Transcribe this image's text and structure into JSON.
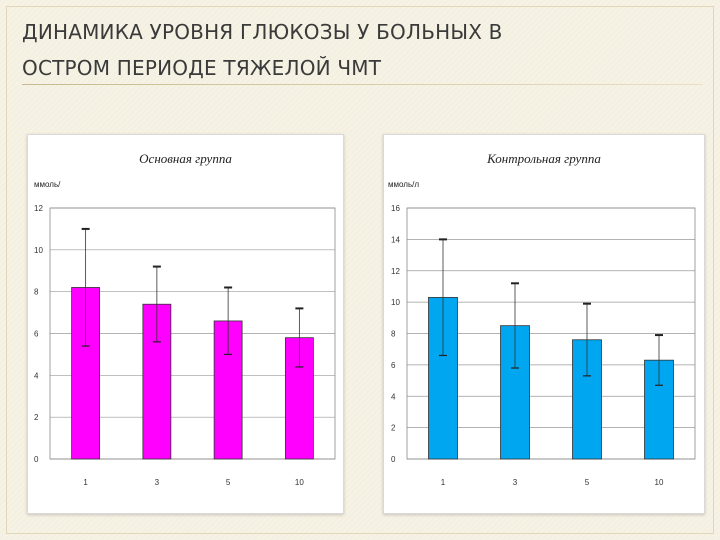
{
  "slide": {
    "title_line1": "ДИНАМИКА УРОВНЯ ГЛЮКОЗЫ У БОЛЬНЫХ В",
    "title_line2": "ОСТРОМ ПЕРИОДЕ  ТЯЖЕЛОЙ ЧМТ"
  },
  "colors": {
    "main_group": "#ff00ff",
    "control_group": "#00a6f0"
  },
  "chart_data": [
    {
      "type": "bar",
      "title": "Основная группа",
      "ylabel": "ммоль/",
      "categories": [
        "1",
        "3",
        "5",
        "10"
      ],
      "series": [
        {
          "values": [
            8.2,
            7.4,
            6.6,
            5.8
          ],
          "error_upper": [
            11.0,
            9.2,
            8.2,
            7.2
          ],
          "error_lower": [
            5.4,
            5.6,
            5.0,
            4.4
          ]
        }
      ],
      "ylim": [
        0,
        12
      ],
      "yticks": [
        0,
        2,
        4,
        6,
        8,
        10,
        12
      ],
      "grid": true
    },
    {
      "type": "bar",
      "title": "Контрольная группа",
      "ylabel": "ммоль/л",
      "categories": [
        "1",
        "3",
        "5",
        "10"
      ],
      "series": [
        {
          "values": [
            10.3,
            8.5,
            7.6,
            6.3
          ],
          "error_upper": [
            14.0,
            11.2,
            9.9,
            7.9
          ],
          "error_lower": [
            6.6,
            5.8,
            5.3,
            4.7
          ]
        }
      ],
      "ylim": [
        0,
        16
      ],
      "yticks": [
        0,
        2,
        4,
        6,
        8,
        10,
        12,
        14,
        16
      ],
      "grid": true
    }
  ]
}
